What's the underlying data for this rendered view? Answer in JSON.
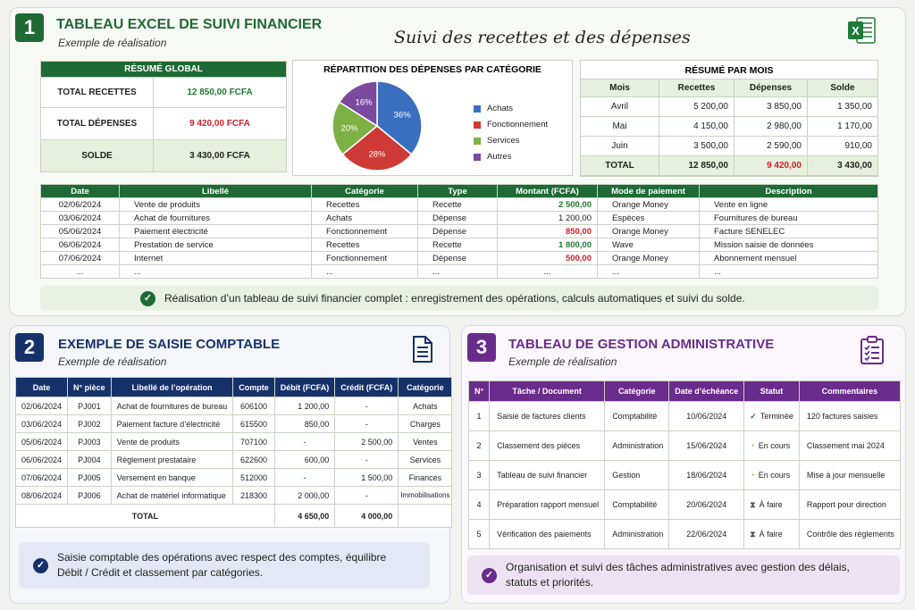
{
  "colors": {
    "green": "#1f6a34",
    "navy": "#16316a",
    "purple": "#6a2c8c",
    "red": "#d0202a",
    "text_green": "#1f7a30"
  },
  "section1": {
    "number": "1",
    "title": "TABLEAU EXCEL DE SUIVI FINANCIER",
    "subtitle": "Exemple de réalisation",
    "script_title": "Suivi des recettes et des dépenses",
    "app_icon": "excel-icon",
    "resume_global": {
      "title": "RÉSUMÉ GLOBAL",
      "rows": [
        {
          "label": "TOTAL RECETTES",
          "value": "12 850,00 FCFA"
        },
        {
          "label": "TOTAL DÉPENSES",
          "value": "9 420,00 FCFA"
        },
        {
          "label": "SOLDE",
          "value": "3 430,00 FCFA"
        }
      ]
    },
    "pie": {
      "title": "RÉPARTITION DES DÉPENSES PAR CATÉGORIE",
      "labels": [
        "36%",
        "28%",
        "20%",
        "16%"
      ]
    },
    "resume_mois": {
      "title": "RÉSUMÉ PAR MOIS",
      "headers": [
        "Mois",
        "Recettes",
        "Dépenses",
        "Solde"
      ],
      "rows": [
        [
          "Avril",
          "5 200,00",
          "3 850,00",
          "1 350,00"
        ],
        [
          "Mai",
          "4 150,00",
          "2 980,00",
          "1 170,00"
        ],
        [
          "Juin",
          "3 500,00",
          "2 590,00",
          "910,00"
        ]
      ],
      "total": [
        "TOTAL",
        "12 850,00",
        "9 420,00",
        "3 430,00"
      ]
    },
    "journal": {
      "headers": [
        "Date",
        "Libellé",
        "Catégorie",
        "Type",
        "Montant (FCFA)",
        "Mode de paiement",
        "Description"
      ],
      "rows": [
        [
          "02/06/2024",
          "Vente de produits",
          "Recettes",
          "Recette",
          "2 500,00",
          "Orange Money",
          "Vente en ligne"
        ],
        [
          "03/06/2024",
          "Achat de fournitures",
          "Achats",
          "Dépense",
          "1 200,00",
          "Espèces",
          "Fournitures de bureau"
        ],
        [
          "05/06/2024",
          "Paiement électricité",
          "Fonctionnement",
          "Dépense",
          "850,00",
          "Orange Money",
          "Facture SENELEC"
        ],
        [
          "06/06/2024",
          "Prestation de service",
          "Recettes",
          "Recette",
          "1 800,00",
          "Wave",
          "Mission saisie de données"
        ],
        [
          "07/06/2024",
          "Internet",
          "Fonctionnement",
          "Dépense",
          "500,00",
          "Orange Money",
          "Abonnement mensuel"
        ],
        [
          "...",
          "...",
          "...",
          "...",
          "...",
          "...",
          "..."
        ]
      ]
    },
    "note": "Réalisation d’un tableau de suivi financier complet : enregistrement des opérations, calculs automatiques et suivi du solde."
  },
  "chart_data": {
    "type": "pie",
    "title": "RÉPARTITION DES DÉPENSES PAR CATÉGORIE",
    "categories": [
      "Achats",
      "Fonctionnement",
      "Services",
      "Autres"
    ],
    "values": [
      36,
      28,
      20,
      16
    ],
    "colors": [
      "#3a6fbf",
      "#d03a36",
      "#7fb046",
      "#7b4a9e"
    ],
    "legend": "right"
  },
  "section2": {
    "number": "2",
    "title": "EXEMPLE DE SAISIE COMPTABLE",
    "subtitle": "Exemple de réalisation",
    "icon": "document-icon",
    "headers": [
      "Date",
      "N° pièce",
      "Libellé de l’opération",
      "Compte",
      "Débit (FCFA)",
      "Crédit (FCFA)",
      "Catégorie"
    ],
    "rows": [
      [
        "02/06/2024",
        "PJ001",
        "Achat de fournitures de bureau",
        "606100",
        "1 200,00",
        "-",
        "Achats"
      ],
      [
        "03/06/2024",
        "PJ002",
        "Paiement facture d’électricité",
        "615500",
        "850,00",
        "-",
        "Charges"
      ],
      [
        "05/06/2024",
        "PJ003",
        "Vente de produits",
        "707100",
        "-",
        "2 500,00",
        "Ventes"
      ],
      [
        "06/06/2024",
        "PJ004",
        "Règlement prestataire",
        "622600",
        "600,00",
        "-",
        "Services"
      ],
      [
        "07/06/2024",
        "PJ005",
        "Versement en banque",
        "512000",
        "-",
        "1 500,00",
        "Finances"
      ],
      [
        "08/06/2024",
        "PJ006",
        "Achat de matériel informatique",
        "218300",
        "2 000,00",
        "-",
        "Immobilisations"
      ]
    ],
    "total": {
      "label": "TOTAL",
      "debit": "4 650,00",
      "credit": "4 000,00"
    },
    "note_line1": "Saisie comptable des opérations avec respect des comptes, équilibre",
    "note_line2": "Débit / Crédit et classement par catégories."
  },
  "section3": {
    "number": "3",
    "title": "TABLEAU DE GESTION ADMINISTRATIVE",
    "subtitle": "Exemple de réalisation",
    "icon": "clipboard-icon",
    "headers": [
      "N°",
      "Tâche / Document",
      "Catégorie",
      "Date d’échéance",
      "Statut",
      "Commentaires"
    ],
    "rows": [
      {
        "n": "1",
        "task": "Saisie de factures clients",
        "cat": "Comptabilité",
        "date": "10/06/2024",
        "status": "Terminée",
        "status_icon": "check-icon",
        "comment": "120 factures saisies"
      },
      {
        "n": "2",
        "task": "Classement des pièces",
        "cat": "Administration",
        "date": "15/06/2024",
        "status": "En cours",
        "status_icon": "clock-icon",
        "comment": "Classement mai 2024"
      },
      {
        "n": "3",
        "task": "Tableau de suivi financier",
        "cat": "Gestion",
        "date": "18/06/2024",
        "status": "En cours",
        "status_icon": "clock-icon",
        "comment": "Mise à jour mensuelle"
      },
      {
        "n": "4",
        "task": "Préparation rapport mensuel",
        "cat": "Comptabilité",
        "date": "20/06/2024",
        "status": "À faire",
        "status_icon": "hourglass-icon",
        "comment": "Rapport pour direction"
      },
      {
        "n": "5",
        "task": "Vérification des paiements",
        "cat": "Administration",
        "date": "22/06/2024",
        "status": "À faire",
        "status_icon": "hourglass-icon",
        "comment": "Contrôle des règlements"
      }
    ],
    "note_line1": "Organisation et suivi des tâches administratives avec gestion des délais,",
    "note_line2": "statuts et priorités."
  }
}
